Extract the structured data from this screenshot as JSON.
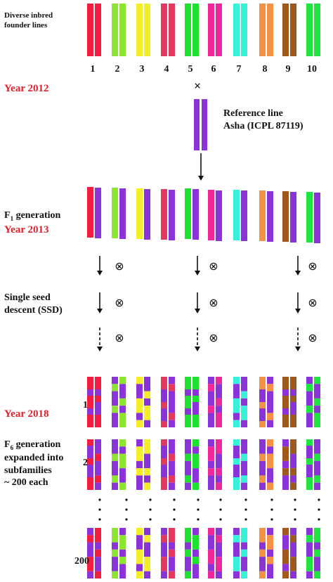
{
  "colors": {
    "c1": "#f21d3f",
    "c2": "#8ee530",
    "c3": "#f2ef2a",
    "c4": "#e23a5e",
    "c5": "#1ee32e",
    "c6": "#f0279a",
    "c7": "#36f2d8",
    "c8": "#f59044",
    "c9": "#a0581d",
    "c10": "#1ee340",
    "ref": "#8a33d9"
  },
  "labels": {
    "founder_title": "Diverse inbred\nfounder lines",
    "year_2012": "Year 2012",
    "cross": "×",
    "reference": "Reference line\nAsha (ICPL 87119)",
    "f1_generation": "F",
    "f1_sub": "1",
    "f1_suffix": " generation",
    "year_2013": "Year 2013",
    "ssd": "Single seed\ndescent (SSD)",
    "year_2018": "Year 2018",
    "f6_prefix": "F",
    "f6_sub": "6",
    "f6_text": " generation\nexpanded into\nsubfamilies\n~ 200 each",
    "row_1": "1",
    "row_2": "2",
    "row_200": "200",
    "self_symbol": "⊗",
    "dots": "•"
  },
  "founder_numbers": [
    "1",
    "2",
    "3",
    "4",
    "5",
    "6",
    "7",
    "8",
    "9",
    "10"
  ]
}
